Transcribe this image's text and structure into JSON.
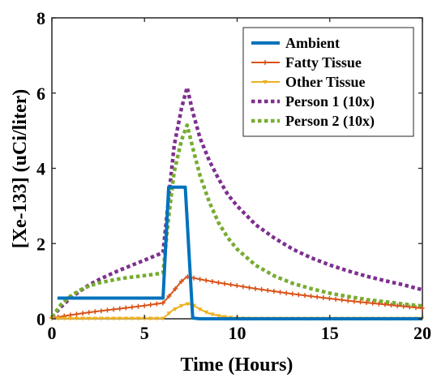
{
  "chart_data": {
    "type": "line",
    "xlabel": "Time (Hours)",
    "ylabel": "[Xe-133] (uCi/liter)",
    "xlim": [
      0,
      20
    ],
    "ylim": [
      0,
      8
    ],
    "xticks": [
      "0",
      "5",
      "10",
      "15",
      "20"
    ],
    "yticks": [
      "0",
      "2",
      "4",
      "6",
      "8"
    ],
    "grid": false,
    "legend_position": "top-right",
    "series": [
      {
        "name": "Ambient",
        "color": "#0072BD",
        "style": "solid",
        "marker": "none",
        "x": [
          0.3,
          6.0,
          6.3,
          7.2,
          7.6,
          8.0,
          20
        ],
        "y": [
          0.55,
          0.55,
          3.5,
          3.5,
          0.02,
          0,
          0
        ]
      },
      {
        "name": "Fatty Tissue",
        "color": "#D95319",
        "style": "solid",
        "marker": "plus",
        "x": [
          0,
          1,
          2,
          3,
          4,
          5,
          6,
          6.5,
          7,
          7.3,
          8,
          9,
          10,
          11,
          12,
          13,
          14,
          15,
          16,
          17,
          18,
          19,
          20
        ],
        "y": [
          0.02,
          0.1,
          0.17,
          0.23,
          0.29,
          0.35,
          0.42,
          0.7,
          1.0,
          1.12,
          1.05,
          0.96,
          0.88,
          0.8,
          0.73,
          0.66,
          0.6,
          0.54,
          0.48,
          0.43,
          0.38,
          0.33,
          0.28
        ]
      },
      {
        "name": "Other Tissue",
        "color": "#EDB120",
        "style": "solid",
        "marker": "triangle-down",
        "x": [
          0,
          1,
          2,
          3,
          4,
          5,
          6,
          6.5,
          7,
          7.3,
          7.6,
          8,
          8.5,
          9,
          9.5,
          10,
          11,
          12,
          14,
          16,
          18,
          20
        ],
        "y": [
          0.01,
          0.01,
          0.01,
          0.01,
          0.01,
          0.01,
          0.01,
          0.22,
          0.35,
          0.4,
          0.37,
          0.25,
          0.14,
          0.08,
          0.04,
          0.02,
          0.01,
          0.01,
          0.01,
          0.01,
          0.01,
          0.01
        ]
      },
      {
        "name": "Person 1 (10x)",
        "color": "#7E2F8E",
        "style": "dotted",
        "marker": "none",
        "x": [
          0,
          0.5,
          1,
          1.5,
          2,
          2.5,
          3,
          3.5,
          4,
          4.5,
          5,
          5.5,
          6,
          6.3,
          6.6,
          7.0,
          7.3,
          7.6,
          8,
          8.5,
          9,
          9.5,
          10,
          11,
          12,
          13,
          14,
          15,
          16,
          17,
          18,
          19,
          20
        ],
        "y": [
          0.05,
          0.32,
          0.55,
          0.73,
          0.9,
          1.03,
          1.15,
          1.26,
          1.36,
          1.46,
          1.56,
          1.66,
          1.76,
          3.2,
          4.6,
          5.6,
          6.15,
          5.5,
          4.8,
          4.2,
          3.72,
          3.3,
          3.0,
          2.5,
          2.15,
          1.85,
          1.62,
          1.43,
          1.27,
          1.13,
          1.01,
          0.9,
          0.77
        ]
      },
      {
        "name": "Person 2 (10x)",
        "color": "#77AC30",
        "style": "dotted",
        "marker": "none",
        "x": [
          0,
          0.5,
          1,
          1.5,
          2,
          2.5,
          3,
          3.5,
          4,
          4.5,
          5,
          5.5,
          6,
          6.3,
          6.6,
          7.0,
          7.3,
          7.6,
          8,
          8.5,
          9,
          9.5,
          10,
          11,
          12,
          13,
          14,
          15,
          16,
          17,
          18,
          19,
          20
        ],
        "y": [
          0.05,
          0.38,
          0.6,
          0.76,
          0.87,
          0.95,
          1.0,
          1.05,
          1.09,
          1.12,
          1.15,
          1.18,
          1.22,
          2.7,
          3.9,
          4.75,
          5.15,
          4.55,
          3.8,
          3.1,
          2.55,
          2.15,
          1.85,
          1.42,
          1.14,
          0.94,
          0.8,
          0.68,
          0.59,
          0.51,
          0.45,
          0.39,
          0.34
        ]
      }
    ]
  }
}
